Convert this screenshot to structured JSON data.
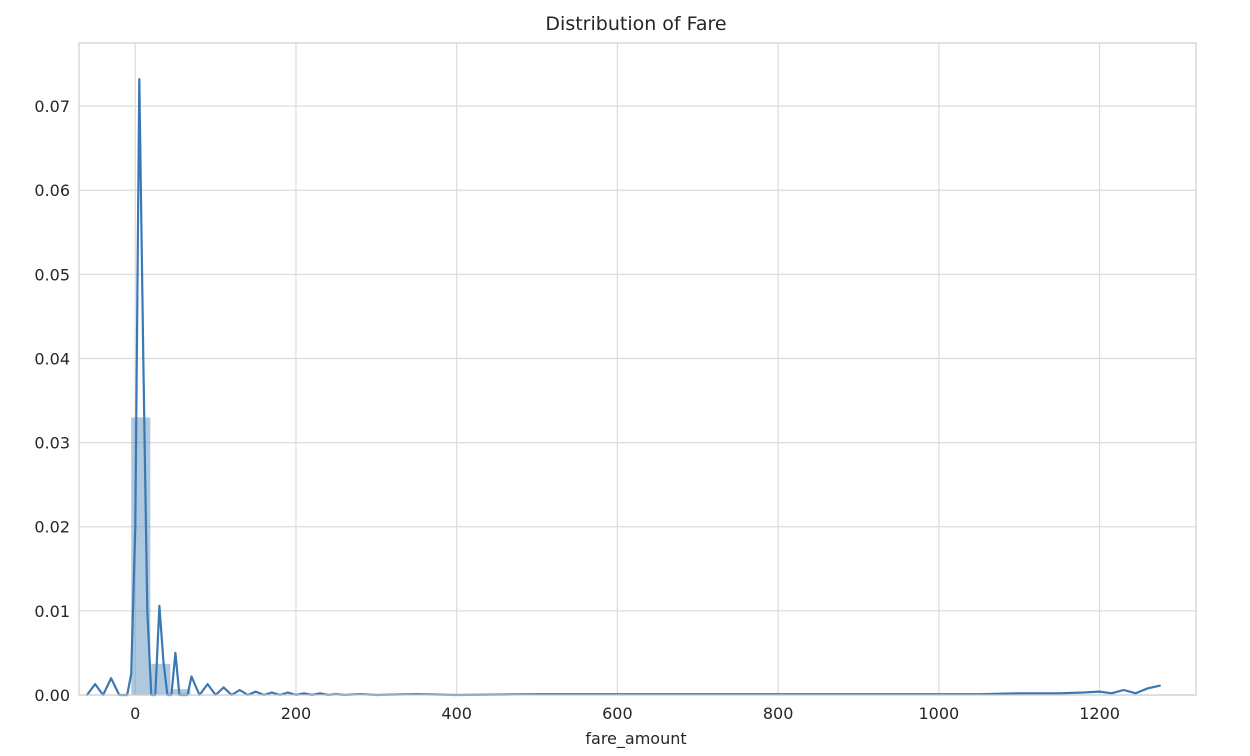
{
  "chart_data": {
    "type": "bar",
    "title": "Distribution of Fare",
    "xlabel": "fare_amount",
    "ylabel": "",
    "xlim": [
      -70,
      1320
    ],
    "ylim": [
      0,
      0.0775
    ],
    "x_ticks": [
      0,
      200,
      400,
      600,
      800,
      1000,
      1200
    ],
    "x_tick_labels": [
      "0",
      "200",
      "400",
      "600",
      "800",
      "1000",
      "1200"
    ],
    "y_ticks": [
      0.0,
      0.01,
      0.02,
      0.03,
      0.04,
      0.05,
      0.06,
      0.07
    ],
    "y_tick_labels": [
      "0.00",
      "0.01",
      "0.02",
      "0.03",
      "0.04",
      "0.05",
      "0.06",
      "0.07"
    ],
    "grid": true,
    "colors": {
      "histogram": "#6c9ac3",
      "kde_line": "#3a78b4",
      "grid": "#dcdcdc",
      "frame": "#cfcfcf",
      "text": "#262626"
    },
    "histogram": {
      "bin_edges": [
        -5,
        20,
        45,
        70
      ],
      "values": [
        0.033,
        0.0037,
        0.0007
      ]
    },
    "kde": {
      "x": [
        -60,
        -50,
        -40,
        -30,
        -20,
        -10,
        -5,
        0,
        5,
        10,
        15,
        20,
        25,
        30,
        35,
        40,
        45,
        50,
        55,
        60,
        65,
        70,
        80,
        90,
        100,
        110,
        120,
        130,
        140,
        150,
        160,
        170,
        180,
        190,
        200,
        210,
        220,
        230,
        240,
        250,
        260,
        280,
        300,
        350,
        400,
        500,
        600,
        700,
        800,
        900,
        1000,
        1050,
        1100,
        1150,
        1180,
        1200,
        1215,
        1230,
        1245,
        1260,
        1275
      ],
      "y": [
        0.0,
        0.0013,
        0.0,
        0.002,
        0.0,
        0.0,
        0.0025,
        0.02,
        0.0732,
        0.04,
        0.01,
        0.0,
        0.0,
        0.0106,
        0.004,
        0.0,
        0.0,
        0.005,
        0.0,
        0.0,
        0.0,
        0.0022,
        0.0,
        0.0013,
        0.0,
        0.0009,
        0.0,
        0.0006,
        0.0,
        0.0004,
        0.0,
        0.0003,
        0.0,
        0.0003,
        0.0,
        0.0002,
        0.0,
        0.0002,
        0.0,
        0.0001,
        0.0,
        0.0001,
        0.0,
        0.0001,
        0.0,
        0.0001,
        0.0001,
        0.0001,
        0.0001,
        0.0001,
        0.0001,
        0.0001,
        0.0002,
        0.0002,
        0.0003,
        0.0004,
        0.0002,
        0.0006,
        0.0002,
        0.0008,
        0.0011
      ]
    }
  }
}
